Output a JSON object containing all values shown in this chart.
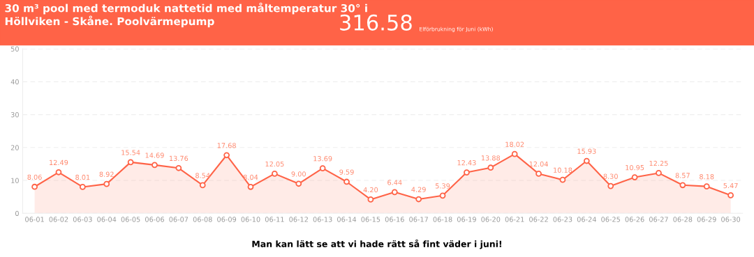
{
  "chart_data": {
    "type": "area",
    "title": "30 m³ pool med termoduk nattetid med måltemperatur 30° i Höllviken - Skåne. Poolvärmepump",
    "annotations": [
      "316.58",
      "Elförbrukning för Juni (kWh)",
      "Man kan lätt se att vi hade rätt så fint väder i juni!"
    ],
    "categories": [
      "06-01",
      "06-02",
      "06-03",
      "06-04",
      "06-05",
      "06-06",
      "06-07",
      "06-08",
      "06-09",
      "06-10",
      "06-11",
      "06-12",
      "06-13",
      "06-14",
      "06-15",
      "06-16",
      "06-17",
      "06-18",
      "06-19",
      "06-20",
      "06-21",
      "06-22",
      "06-23",
      "06-24",
      "06-25",
      "06-26",
      "06-27",
      "06-28",
      "06-29",
      "06-30"
    ],
    "values": [
      8.06,
      12.49,
      8.01,
      8.92,
      15.54,
      14.69,
      13.76,
      8.54,
      17.68,
      8.04,
      12.05,
      9.0,
      13.69,
      9.59,
      4.2,
      6.44,
      4.29,
      5.39,
      12.43,
      13.88,
      18.02,
      12.04,
      10.18,
      15.93,
      8.3,
      10.95,
      12.25,
      8.57,
      8.18,
      5.47
    ],
    "value_labels": [
      "8.06",
      "12.49",
      "8.01",
      "8.92",
      "15.54",
      "14.69",
      "13.76",
      "8.54",
      "17.68",
      "8.04",
      "12.05",
      "9.00",
      "13.69",
      "9.59",
      "4.20",
      "6.44",
      "4.29",
      "5.39",
      "12.43",
      "13.88",
      "18.02",
      "12.04",
      "10.18",
      "15.93",
      "8.30",
      "10.95",
      "12.25",
      "8.57",
      "8.18",
      "5.47"
    ],
    "color": "#ff6347",
    "ylim": [
      0,
      50
    ],
    "yticks": [
      0,
      10,
      20,
      30,
      40,
      50
    ],
    "grid": "y",
    "marker": "circle",
    "line_style": "solid",
    "legend": false
  }
}
